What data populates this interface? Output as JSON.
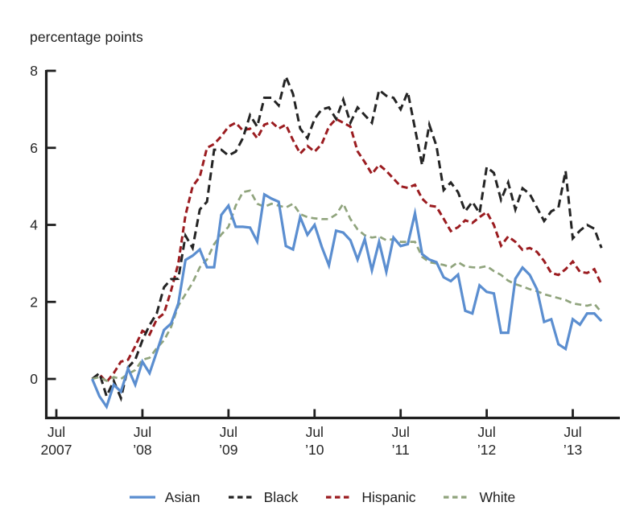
{
  "title": "percentage points",
  "colors": {
    "asian": "#5b8ed0",
    "black": "#242424",
    "hispanic": "#9b1c20",
    "white": "#90a47d",
    "axis": "#1f1f1f",
    "text": "#262626"
  },
  "chart_data": {
    "type": "line",
    "title": "percentage points",
    "ylabel": "percentage points",
    "xlabel": "",
    "grid": false,
    "legend_position": "bottom",
    "y_axis": {
      "ticks": [
        0,
        2,
        4,
        6,
        8
      ],
      "drawn_range": [
        -1.1,
        8
      ]
    },
    "x_axis": {
      "tick_labels": [
        [
          "Jul",
          "2007"
        ],
        [
          "Jul",
          "’08"
        ],
        [
          "Jul",
          "’09"
        ],
        [
          "Jul",
          "’10"
        ],
        [
          "Jul",
          "’11"
        ],
        [
          "Jul",
          "’12"
        ],
        [
          "Jul",
          "’13"
        ]
      ],
      "frequency": "monthly",
      "start": "2007-12",
      "end": "2013-11"
    },
    "months": [
      "2007-12",
      "2008-01",
      "2008-02",
      "2008-03",
      "2008-04",
      "2008-05",
      "2008-06",
      "2008-07",
      "2008-08",
      "2008-09",
      "2008-10",
      "2008-11",
      "2008-12",
      "2009-01",
      "2009-02",
      "2009-03",
      "2009-04",
      "2009-05",
      "2009-06",
      "2009-07",
      "2009-08",
      "2009-09",
      "2009-10",
      "2009-11",
      "2009-12",
      "2010-01",
      "2010-02",
      "2010-03",
      "2010-04",
      "2010-05",
      "2010-06",
      "2010-07",
      "2010-08",
      "2010-09",
      "2010-10",
      "2010-11",
      "2010-12",
      "2011-01",
      "2011-02",
      "2011-03",
      "2011-04",
      "2011-05",
      "2011-06",
      "2011-07",
      "2011-08",
      "2011-09",
      "2011-10",
      "2011-11",
      "2011-12",
      "2012-01",
      "2012-02",
      "2012-03",
      "2012-04",
      "2012-05",
      "2012-06",
      "2012-07",
      "2012-08",
      "2012-09",
      "2012-10",
      "2012-11",
      "2012-12",
      "2013-01",
      "2013-02",
      "2013-03",
      "2013-04",
      "2013-05",
      "2013-06",
      "2013-07",
      "2013-08",
      "2013-09",
      "2013-10",
      "2013-11"
    ],
    "series": [
      {
        "name": "Asian",
        "style": "solid",
        "color": "#5b8ed0",
        "values": [
          0.0,
          -0.45,
          -0.72,
          -0.15,
          -0.33,
          0.27,
          -0.15,
          0.45,
          0.15,
          0.7,
          1.27,
          1.44,
          1.96,
          3.09,
          3.2,
          3.36,
          2.9,
          2.9,
          4.26,
          4.5,
          3.95,
          3.95,
          3.93,
          3.57,
          4.79,
          4.68,
          4.6,
          3.45,
          3.36,
          4.2,
          3.74,
          4.0,
          3.43,
          2.95,
          3.85,
          3.8,
          3.6,
          3.1,
          3.63,
          2.82,
          3.56,
          2.78,
          3.67,
          3.45,
          3.5,
          4.3,
          3.24,
          3.1,
          3.03,
          2.64,
          2.54,
          2.71,
          1.77,
          1.7,
          2.43,
          2.26,
          2.22,
          1.2,
          1.2,
          2.6,
          2.89,
          2.7,
          2.33,
          1.48,
          1.55,
          0.9,
          0.78,
          1.55,
          1.41,
          1.7,
          1.7,
          1.5
        ]
      },
      {
        "name": "Black",
        "style": "dashed",
        "color": "#242424",
        "values": [
          0.0,
          0.15,
          -0.45,
          -0.05,
          -0.5,
          0.3,
          0.5,
          1.0,
          1.4,
          1.7,
          2.38,
          2.59,
          2.6,
          3.72,
          3.4,
          4.4,
          4.6,
          5.95,
          5.95,
          5.8,
          5.9,
          6.25,
          6.85,
          6.55,
          7.3,
          7.3,
          7.1,
          7.85,
          7.4,
          6.5,
          6.25,
          6.75,
          7.0,
          7.05,
          6.75,
          7.25,
          6.65,
          7.05,
          6.85,
          6.65,
          7.5,
          7.35,
          7.3,
          7.0,
          7.45,
          6.5,
          5.55,
          6.6,
          6.05,
          4.9,
          5.1,
          4.85,
          4.35,
          4.6,
          4.3,
          5.5,
          5.35,
          4.65,
          5.1,
          4.4,
          4.95,
          4.8,
          4.45,
          4.1,
          4.35,
          4.45,
          5.4,
          3.65,
          3.85,
          4.0,
          3.9,
          3.4
        ]
      },
      {
        "name": "Hispanic",
        "style": "dashed",
        "color": "#9b1c20",
        "values": [
          0.0,
          0.12,
          -0.08,
          0.15,
          0.45,
          0.5,
          0.85,
          1.25,
          1.15,
          1.55,
          1.7,
          2.3,
          3.0,
          4.25,
          5.0,
          5.25,
          6.0,
          6.1,
          6.3,
          6.55,
          6.65,
          6.45,
          6.5,
          6.25,
          6.6,
          6.67,
          6.5,
          6.6,
          6.2,
          5.85,
          6.05,
          5.9,
          6.1,
          6.55,
          6.75,
          6.65,
          6.55,
          5.91,
          5.63,
          5.32,
          5.56,
          5.4,
          5.2,
          5.0,
          4.96,
          5.04,
          4.68,
          4.5,
          4.47,
          4.16,
          3.84,
          3.94,
          4.12,
          4.05,
          4.2,
          4.33,
          4.0,
          3.46,
          3.7,
          3.56,
          3.35,
          3.4,
          3.3,
          3.06,
          2.75,
          2.7,
          2.85,
          3.05,
          2.78,
          2.75,
          2.85,
          2.45
        ]
      },
      {
        "name": "White",
        "style": "dashed",
        "color": "#90a47d",
        "values": [
          0.0,
          0.05,
          -0.05,
          0.05,
          0.0,
          0.13,
          0.23,
          0.5,
          0.55,
          0.8,
          1.0,
          1.35,
          1.9,
          2.2,
          2.5,
          2.9,
          3.1,
          3.5,
          3.75,
          3.95,
          4.5,
          4.85,
          4.89,
          4.55,
          4.47,
          4.55,
          4.5,
          4.45,
          4.55,
          4.28,
          4.2,
          4.17,
          4.15,
          4.15,
          4.27,
          4.55,
          4.15,
          3.88,
          3.73,
          3.67,
          3.7,
          3.6,
          3.63,
          3.56,
          3.56,
          3.56,
          3.17,
          3.03,
          3.0,
          2.96,
          2.9,
          3.03,
          2.92,
          2.9,
          2.89,
          2.93,
          2.8,
          2.7,
          2.55,
          2.46,
          2.4,
          2.33,
          2.28,
          2.2,
          2.15,
          2.1,
          2.05,
          1.96,
          1.93,
          1.9,
          1.95,
          1.73
        ]
      }
    ]
  }
}
